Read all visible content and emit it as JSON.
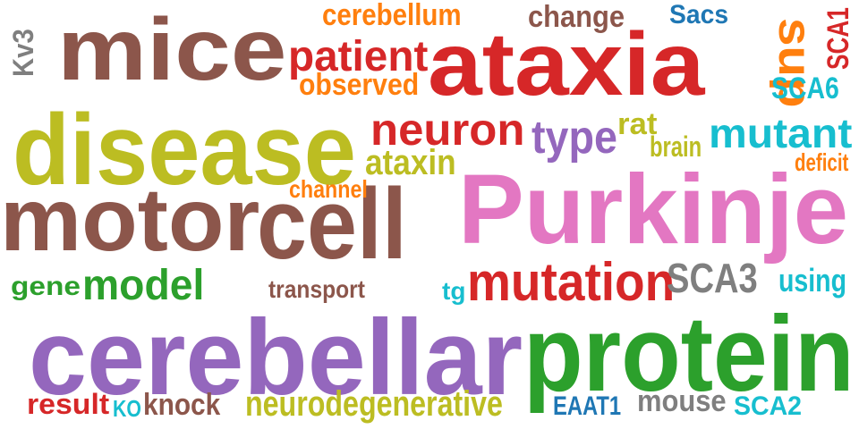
{
  "words": [
    {
      "text": "ataxia",
      "color": "#d62728"
    },
    {
      "text": "Purkinje",
      "color": "#e377c2"
    },
    {
      "text": "cerebellar",
      "color": "#9467bd"
    },
    {
      "text": "protein",
      "color": "#2ca02c"
    },
    {
      "text": "disease",
      "color": "#bcbd22"
    },
    {
      "text": "mice",
      "color": "#8c564b"
    },
    {
      "text": "motor",
      "color": "#8c564b"
    },
    {
      "text": "cell",
      "color": "#8c564b"
    },
    {
      "text": "mutation",
      "color": "#d62728"
    },
    {
      "text": "neuron",
      "color": "#d62728"
    },
    {
      "text": "patient",
      "color": "#d62728"
    },
    {
      "text": "mutant",
      "color": "#17becf"
    },
    {
      "text": "model",
      "color": "#2ca02c"
    },
    {
      "text": "SCA3",
      "color": "#7f7f7f"
    },
    {
      "text": "type",
      "color": "#9467bd"
    },
    {
      "text": "sup",
      "color": "#ff7f0e"
    },
    {
      "text": "ataxin",
      "color": "#bcbd22"
    },
    {
      "text": "neurodegenerative",
      "color": "#bcbd22"
    },
    {
      "text": "cerebellum",
      "color": "#ff7f0e"
    },
    {
      "text": "change",
      "color": "#8c564b"
    },
    {
      "text": "observed",
      "color": "#ff7f0e"
    },
    {
      "text": "SCA6",
      "color": "#17becf"
    },
    {
      "text": "SCA1",
      "color": "#d62728"
    },
    {
      "text": "Sacs",
      "color": "#1f77b4"
    },
    {
      "text": "Kv3",
      "color": "#7f7f7f"
    },
    {
      "text": "rat",
      "color": "#bcbd22"
    },
    {
      "text": "brain",
      "color": "#bcbd22"
    },
    {
      "text": "deficit",
      "color": "#ff7f0e"
    },
    {
      "text": "channel",
      "color": "#ff7f0e"
    },
    {
      "text": "gene",
      "color": "#2ca02c"
    },
    {
      "text": "transport",
      "color": "#8c564b"
    },
    {
      "text": "tg",
      "color": "#17becf"
    },
    {
      "text": "using",
      "color": "#17becf"
    },
    {
      "text": "result",
      "color": "#d62728"
    },
    {
      "text": "KO",
      "color": "#17becf"
    },
    {
      "text": "knock",
      "color": "#8c564b"
    },
    {
      "text": "EAAT1",
      "color": "#1f77b4"
    },
    {
      "text": "mouse",
      "color": "#7f7f7f"
    },
    {
      "text": "SCA2",
      "color": "#17becf"
    }
  ]
}
